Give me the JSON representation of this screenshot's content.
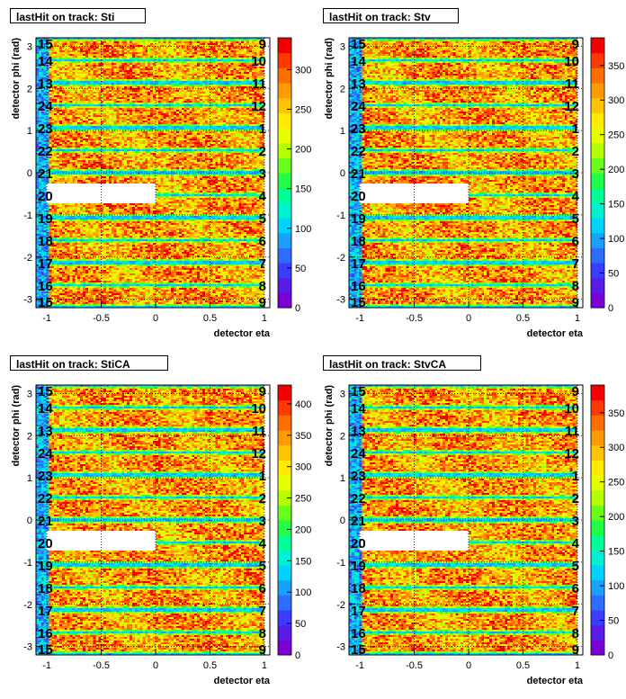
{
  "chart_data": [
    {
      "type": "heatmap",
      "title": "lastHit on track: Sti",
      "xlabel": "detector eta",
      "ylabel": "detector phi (rad)",
      "xlim": [
        -1.1,
        1.05
      ],
      "ylim": [
        -3.2,
        3.2
      ],
      "x_ticks": [
        "-1",
        "-0.5",
        "0",
        "0.5",
        "1"
      ],
      "y_ticks": [
        "-3",
        "-2",
        "-1",
        "0",
        "1",
        "2",
        "3"
      ],
      "zlim": [
        0,
        340
      ],
      "z_ticks": [
        "0",
        "50",
        "100",
        "150",
        "200",
        "250",
        "300"
      ],
      "sectors_left": [
        "15",
        "14",
        "13",
        "24",
        "23",
        "22",
        "21",
        "20",
        "19",
        "18",
        "17",
        "16",
        "15"
      ],
      "sectors_right": [
        "9",
        "10",
        "11",
        "12",
        "1",
        "2",
        "3",
        "4",
        "5",
        "6",
        "7",
        "8",
        "9"
      ],
      "grid": true
    },
    {
      "type": "heatmap",
      "title": "lastHit on track: Stv",
      "xlabel": "detector eta",
      "ylabel": "detector phi (rad)",
      "xlim": [
        -1.1,
        1.05
      ],
      "ylim": [
        -3.2,
        3.2
      ],
      "x_ticks": [
        "-1",
        "-0.5",
        "0",
        "0.5",
        "1"
      ],
      "y_ticks": [
        "-3",
        "-2",
        "-1",
        "0",
        "1",
        "2",
        "3"
      ],
      "zlim": [
        0,
        390
      ],
      "z_ticks": [
        "0",
        "50",
        "100",
        "150",
        "200",
        "250",
        "300",
        "350"
      ],
      "sectors_left": [
        "15",
        "14",
        "13",
        "24",
        "23",
        "22",
        "21",
        "20",
        "19",
        "18",
        "17",
        "16",
        "15"
      ],
      "sectors_right": [
        "9",
        "10",
        "11",
        "12",
        "1",
        "2",
        "3",
        "4",
        "5",
        "6",
        "7",
        "8",
        "9"
      ],
      "grid": true
    },
    {
      "type": "heatmap",
      "title": "lastHit on track: StiCA",
      "xlabel": "detector eta",
      "ylabel": "detector phi (rad)",
      "xlim": [
        -1.1,
        1.05
      ],
      "ylim": [
        -3.2,
        3.2
      ],
      "x_ticks": [
        "-1",
        "-0.5",
        "0",
        "0.5",
        "1"
      ],
      "y_ticks": [
        "-3",
        "-2",
        "-1",
        "0",
        "1",
        "2",
        "3"
      ],
      "zlim": [
        0,
        430
      ],
      "z_ticks": [
        "0",
        "50",
        "100",
        "150",
        "200",
        "250",
        "300",
        "350",
        "400"
      ],
      "sectors_left": [
        "15",
        "14",
        "13",
        "24",
        "23",
        "22",
        "21",
        "20",
        "19",
        "18",
        "17",
        "16",
        "15"
      ],
      "sectors_right": [
        "9",
        "10",
        "11",
        "12",
        "1",
        "2",
        "3",
        "4",
        "5",
        "6",
        "7",
        "8",
        "9"
      ],
      "grid": true
    },
    {
      "type": "heatmap",
      "title": "lastHit on track: StvCA",
      "xlabel": "detector eta",
      "ylabel": "detector phi (rad)",
      "xlim": [
        -1.1,
        1.05
      ],
      "ylim": [
        -3.2,
        3.2
      ],
      "x_ticks": [
        "-1",
        "-0.5",
        "0",
        "0.5",
        "1"
      ],
      "y_ticks": [
        "-3",
        "-2",
        "-1",
        "0",
        "1",
        "2",
        "3"
      ],
      "zlim": [
        0,
        390
      ],
      "z_ticks": [
        "0",
        "50",
        "100",
        "150",
        "200",
        "250",
        "300",
        "350"
      ],
      "sectors_left": [
        "15",
        "14",
        "13",
        "24",
        "23",
        "22",
        "21",
        "20",
        "19",
        "18",
        "17",
        "16",
        "15"
      ],
      "sectors_right": [
        "9",
        "10",
        "11",
        "12",
        "1",
        "2",
        "3",
        "4",
        "5",
        "6",
        "7",
        "8",
        "9"
      ],
      "grid": true
    }
  ]
}
